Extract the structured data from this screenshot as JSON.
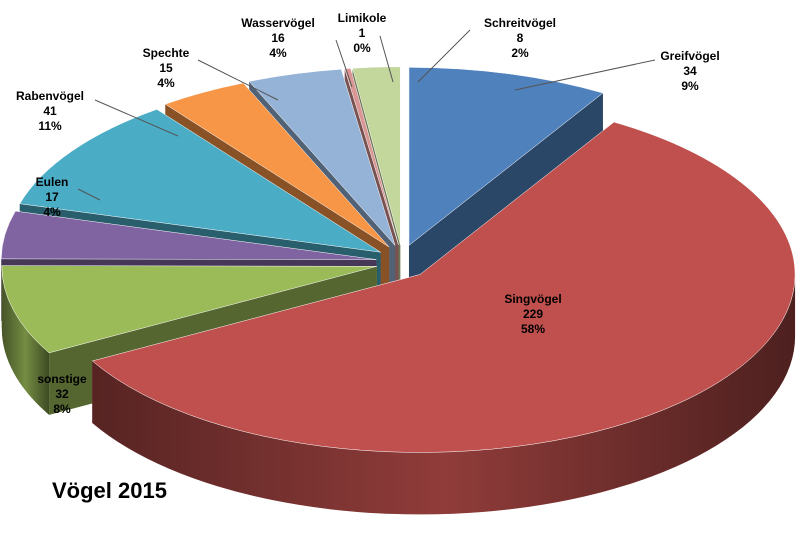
{
  "chart_data": {
    "type": "pie",
    "title": "Vögel 2015",
    "three_d": true,
    "exploded": true,
    "slices": [
      {
        "name": "Greifvögel",
        "value": 34,
        "percent": "9%",
        "color": "#4f81bd"
      },
      {
        "name": "Singvögel",
        "value": 229,
        "percent": "58%",
        "color": "#c0504d"
      },
      {
        "name": "sonstige",
        "value": 32,
        "percent": "8%",
        "color": "#9bbb59"
      },
      {
        "name": "Eulen",
        "value": 17,
        "percent": "4%",
        "color": "#8064a2"
      },
      {
        "name": "Rabenvögel",
        "value": 41,
        "percent": "11%",
        "color": "#4bacc6"
      },
      {
        "name": "Spechte",
        "value": 15,
        "percent": "4%",
        "color": "#f79646"
      },
      {
        "name": "Wasservögel",
        "value": 16,
        "percent": "4%",
        "color": "#95b3d7"
      },
      {
        "name": "Limikole",
        "value": 1,
        "percent": "0%",
        "color": "#d99694"
      },
      {
        "name": "Schreitvögel",
        "value": 8,
        "percent": "2%",
        "color": "#c3d69b"
      }
    ]
  }
}
